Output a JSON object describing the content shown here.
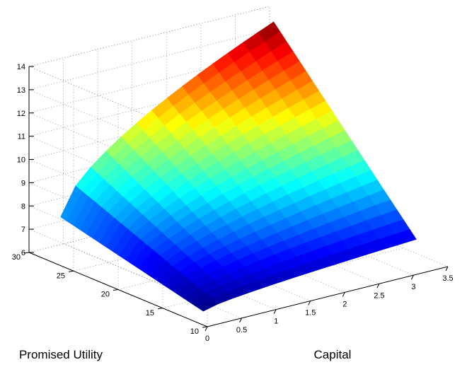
{
  "chart_data": {
    "type": "surface",
    "title": "",
    "xlabel": "Capital",
    "ylabel": "Promised Utility",
    "zlabel": "",
    "xlim": [
      0,
      3.5
    ],
    "ylim": [
      10,
      30
    ],
    "zlim": [
      6,
      14
    ],
    "x_ticks": [
      "0",
      "0.5",
      "1",
      "1.5",
      "2",
      "2.5",
      "3",
      "3.5"
    ],
    "y_ticks": [
      "10",
      "15",
      "20",
      "25",
      "30"
    ],
    "z_ticks": [
      "6",
      "7",
      "8",
      "9",
      "10",
      "11",
      "12",
      "13",
      "14"
    ],
    "grid": true,
    "box": "partial",
    "colormap": "jet",
    "x_domain": [
      0.2,
      3.3
    ],
    "y_domain": [
      12,
      28
    ],
    "z_range": [
      6.2,
      13.8
    ],
    "corner_values": {
      "x_low_y_low": 6.2,
      "x_low_y_high": 7.7,
      "x_high_y_low": 7.0,
      "x_high_y_high": 13.8
    }
  }
}
